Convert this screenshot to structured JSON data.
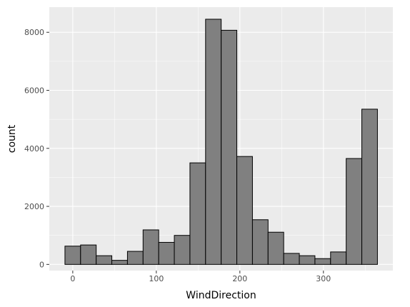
{
  "chart_data": {
    "type": "bar",
    "title": "",
    "xlabel": "WindDirection",
    "ylabel": "count",
    "xlim": [
      -28.1,
      383.1
    ],
    "ylim": [
      -213,
      8867
    ],
    "x_ticks": [
      0,
      100,
      200,
      300
    ],
    "y_ticks": [
      0,
      2000,
      4000,
      6000,
      8000
    ],
    "grid": true,
    "bin_width": 18.7,
    "bins": [
      {
        "start": -9.35,
        "end": 9.35,
        "count": 630
      },
      {
        "start": 9.35,
        "end": 28.05,
        "count": 670
      },
      {
        "start": 28.05,
        "end": 46.75,
        "count": 300
      },
      {
        "start": 46.75,
        "end": 65.45,
        "count": 140
      },
      {
        "start": 65.45,
        "end": 84.15,
        "count": 450
      },
      {
        "start": 84.15,
        "end": 102.85,
        "count": 1190
      },
      {
        "start": 102.85,
        "end": 121.55,
        "count": 760
      },
      {
        "start": 121.55,
        "end": 140.25,
        "count": 1000
      },
      {
        "start": 140.25,
        "end": 158.95,
        "count": 3500
      },
      {
        "start": 158.95,
        "end": 177.65,
        "count": 8450
      },
      {
        "start": 177.65,
        "end": 196.35,
        "count": 8070
      },
      {
        "start": 196.35,
        "end": 215.05,
        "count": 3720
      },
      {
        "start": 215.05,
        "end": 233.75,
        "count": 1540
      },
      {
        "start": 233.75,
        "end": 252.45,
        "count": 1110
      },
      {
        "start": 252.45,
        "end": 271.15,
        "count": 380
      },
      {
        "start": 271.15,
        "end": 289.85,
        "count": 300
      },
      {
        "start": 289.85,
        "end": 308.55,
        "count": 200
      },
      {
        "start": 308.55,
        "end": 327.25,
        "count": 430
      },
      {
        "start": 327.25,
        "end": 345.95,
        "count": 3650
      },
      {
        "start": 345.95,
        "end": 364.65,
        "count": 5350
      }
    ],
    "colors": {
      "panel": "#ebebeb",
      "grid_major": "#ffffff",
      "bar_fill": "#808080",
      "bar_stroke": "#000000"
    }
  }
}
